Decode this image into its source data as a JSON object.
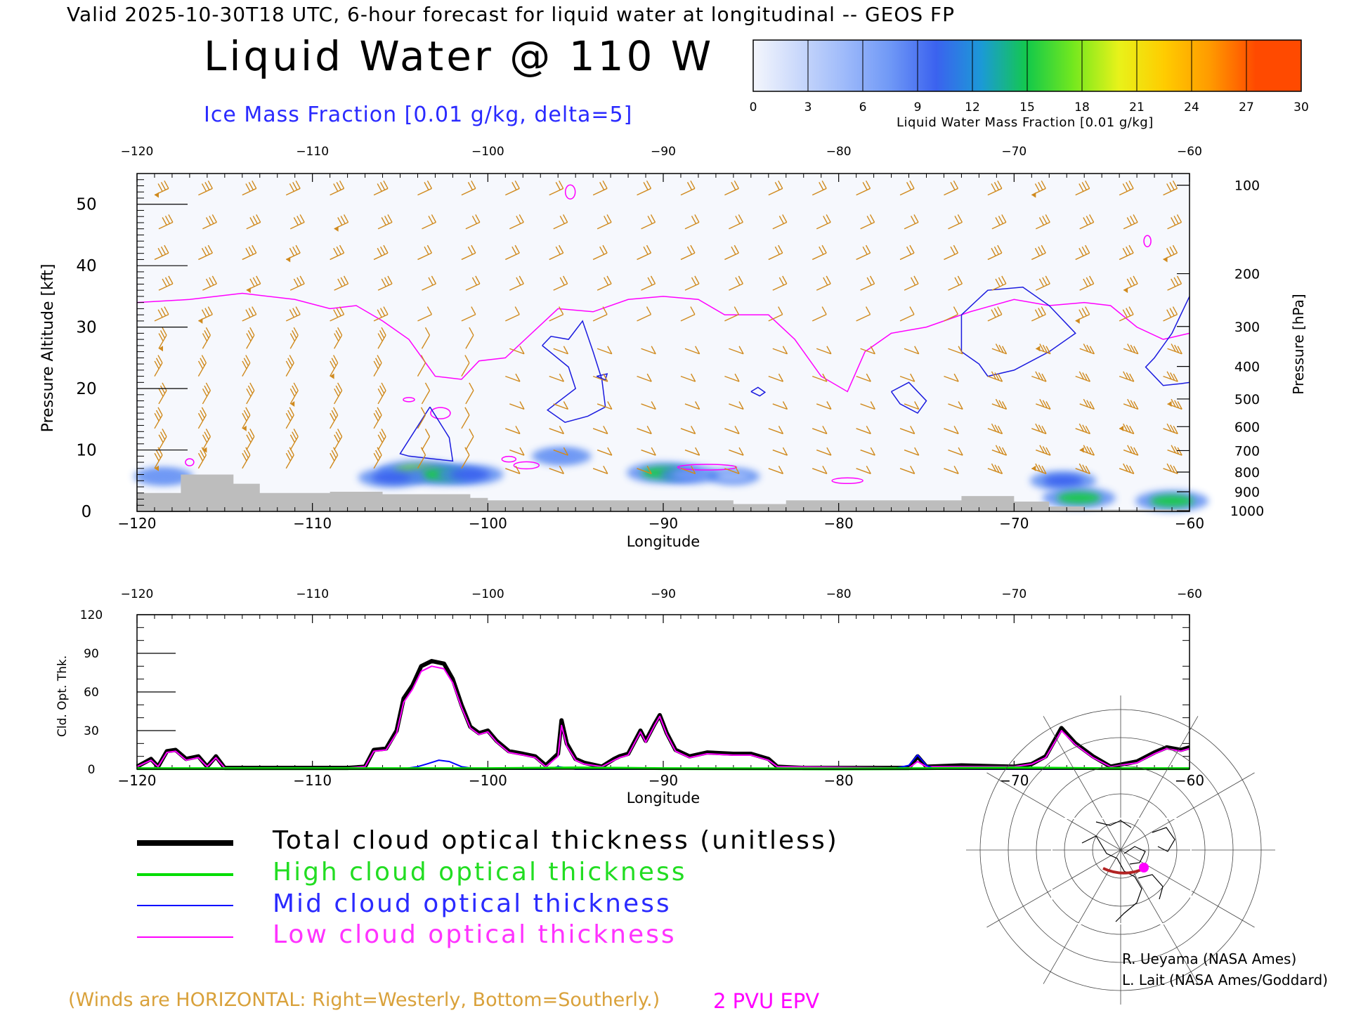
{
  "header": {
    "valid_line": "Valid 2025-10-30T18 UTC, 6-hour forecast for liquid water at longitudinal -- GEOS FP",
    "title": "Liquid Water @ 110 W",
    "subtitle": "Ice Mass Fraction [0.01 g/kg, delta=5]"
  },
  "colorbar": {
    "ticks": [
      "0",
      "3",
      "6",
      "9",
      "12",
      "15",
      "18",
      "21",
      "24",
      "27",
      "30"
    ],
    "label": "Liquid Water Mass Fraction [0.01 g/kg]",
    "colors": [
      "#f4f6fc",
      "#c9d8fb",
      "#9ebafa",
      "#6f98f6",
      "#3b62ef",
      "#1b9ad6",
      "#13c94a",
      "#73e81e",
      "#e8f21a",
      "#ffcc00",
      "#ff9a00",
      "#ff4a00"
    ]
  },
  "chart_data": [
    {
      "type": "heatmap",
      "name": "cross-section",
      "xlabel": "Longitude",
      "ylabel_left": "Pressure Altitude [kft]",
      "ylabel_right": "Pressure [hPa]",
      "xlim": [
        -120,
        -60
      ],
      "ylim": [
        0,
        55
      ],
      "x_ticks": [
        "-120",
        "-110",
        "-100",
        "-90",
        "-80",
        "-70",
        "-60"
      ],
      "y_ticks_left": [
        "0",
        "10",
        "20",
        "30",
        "40",
        "50"
      ],
      "y_ticks_right": [
        {
          "label": "100",
          "kft": 53.1
        },
        {
          "label": "200",
          "kft": 38.7
        },
        {
          "label": "300",
          "kft": 30.1
        },
        {
          "label": "400",
          "kft": 23.6
        },
        {
          "label": "500",
          "kft": 18.3
        },
        {
          "label": "600",
          "kft": 13.8
        },
        {
          "label": "700",
          "kft": 9.9
        },
        {
          "label": "800",
          "kft": 6.4
        },
        {
          "label": "900",
          "kft": 3.2
        },
        {
          "label": "1000",
          "kft": 0.1
        }
      ],
      "liquid_water_blobs": [
        {
          "lon": -104.0,
          "kft": 6.5,
          "value": 18
        },
        {
          "lon": -102.5,
          "kft": 6.0,
          "value": 15
        },
        {
          "lon": -105.5,
          "kft": 5.5,
          "value": 12
        },
        {
          "lon": -101.0,
          "kft": 6.0,
          "value": 12
        },
        {
          "lon": -95.8,
          "kft": 9.0,
          "value": 9
        },
        {
          "lon": -90.0,
          "kft": 6.3,
          "value": 15
        },
        {
          "lon": -88.5,
          "kft": 6.0,
          "value": 9
        },
        {
          "lon": -86.0,
          "kft": 5.7,
          "value": 6
        },
        {
          "lon": -118.5,
          "kft": 5.7,
          "value": 9
        },
        {
          "lon": -67.2,
          "kft": 5.0,
          "value": 12
        },
        {
          "lon": -66.3,
          "kft": 2.2,
          "value": 15
        },
        {
          "lon": -61.0,
          "kft": 1.7,
          "value": 15
        }
      ],
      "ice_fraction_contour_level": "5",
      "epv_2pvu_kft": [
        [
          -120,
          34.0
        ],
        [
          -117,
          34.5
        ],
        [
          -114,
          35.5
        ],
        [
          -111,
          34.5
        ],
        [
          -109,
          33.0
        ],
        [
          -107.5,
          33.5
        ],
        [
          -106,
          31.0
        ],
        [
          -104.5,
          28.0
        ],
        [
          -103,
          22.0
        ],
        [
          -101.5,
          21.5
        ],
        [
          -100.5,
          24.5
        ],
        [
          -99,
          25.0
        ],
        [
          -97.5,
          29.0
        ],
        [
          -96,
          33.0
        ],
        [
          -94,
          32.5
        ],
        [
          -92,
          34.5
        ],
        [
          -90,
          35.0
        ],
        [
          -88,
          34.5
        ],
        [
          -86.5,
          32.0
        ],
        [
          -84,
          32.0
        ],
        [
          -82.5,
          28.0
        ],
        [
          -81,
          22.0
        ],
        [
          -79.5,
          19.5
        ],
        [
          -78.5,
          26.0
        ],
        [
          -77,
          29.0
        ],
        [
          -75,
          30.0
        ],
        [
          -72.5,
          32.5
        ],
        [
          -70,
          34.5
        ],
        [
          -68,
          33.5
        ],
        [
          -66,
          34.0
        ],
        [
          -64.5,
          33.5
        ],
        [
          -63,
          30.0
        ],
        [
          -61.5,
          28.0
        ],
        [
          -60,
          29.0
        ]
      ],
      "terrain_kft": [
        [
          -120,
          0
        ],
        [
          -120,
          3
        ],
        [
          -117.5,
          3
        ],
        [
          -117.5,
          6
        ],
        [
          -114.5,
          6
        ],
        [
          -114.5,
          4.5
        ],
        [
          -113,
          4.5
        ],
        [
          -113,
          3
        ],
        [
          -109,
          3
        ],
        [
          -109,
          3.2
        ],
        [
          -106,
          3.2
        ],
        [
          -106,
          2.8
        ],
        [
          -101,
          2.8
        ],
        [
          -101,
          2.2
        ],
        [
          -100,
          2.2
        ],
        [
          -100,
          1.8
        ],
        [
          -86,
          1.8
        ],
        [
          -86,
          1.2
        ],
        [
          -83,
          1.2
        ],
        [
          -83,
          1.8
        ],
        [
          -73,
          1.8
        ],
        [
          -73,
          2.5
        ],
        [
          -70,
          2.5
        ],
        [
          -70,
          1.6
        ],
        [
          -68,
          1.6
        ],
        [
          -68,
          0.8
        ],
        [
          -66,
          0.8
        ],
        [
          -66,
          0.3
        ],
        [
          -60,
          0.3
        ],
        [
          -60,
          0
        ]
      ]
    },
    {
      "type": "line",
      "name": "cloud-optical-thickness",
      "xlabel": "Longitude",
      "ylabel": "Cld. Opt. Thk.",
      "xlim": [
        -120,
        -60
      ],
      "ylim": [
        0,
        120
      ],
      "x_ticks": [
        "-120",
        "-110",
        "-100",
        "-90",
        "-80",
        "-70",
        "-60"
      ],
      "y_ticks": [
        "0",
        "30",
        "60",
        "90",
        "120"
      ],
      "series": [
        {
          "name": "Total cloud optical thickness (unitless)",
          "color": "#000000",
          "width": 6,
          "points": [
            [
              -120,
              2
            ],
            [
              -119.2,
              8
            ],
            [
              -118.8,
              2
            ],
            [
              -118.3,
              14
            ],
            [
              -117.8,
              15
            ],
            [
              -117.2,
              8
            ],
            [
              -116.5,
              10
            ],
            [
              -116,
              2
            ],
            [
              -115.5,
              10
            ],
            [
              -115,
              1
            ],
            [
              -112,
              1
            ],
            [
              -108,
              1
            ],
            [
              -107,
              2
            ],
            [
              -106.5,
              15
            ],
            [
              -105.8,
              16
            ],
            [
              -105.2,
              30
            ],
            [
              -104.8,
              55
            ],
            [
              -104.3,
              65
            ],
            [
              -103.8,
              80
            ],
            [
              -103.2,
              84
            ],
            [
              -102.5,
              82
            ],
            [
              -102,
              70
            ],
            [
              -101.5,
              50
            ],
            [
              -101,
              33
            ],
            [
              -100.5,
              28
            ],
            [
              -100,
              30
            ],
            [
              -99.5,
              22
            ],
            [
              -98.8,
              14
            ],
            [
              -98,
              12
            ],
            [
              -97.3,
              10
            ],
            [
              -96.7,
              3
            ],
            [
              -96,
              12
            ],
            [
              -95.8,
              38
            ],
            [
              -95.5,
              20
            ],
            [
              -95,
              8
            ],
            [
              -94.5,
              5
            ],
            [
              -93.5,
              2
            ],
            [
              -92.8,
              8
            ],
            [
              -92.5,
              10
            ],
            [
              -92,
              12
            ],
            [
              -91.3,
              30
            ],
            [
              -91,
              22
            ],
            [
              -90.5,
              35
            ],
            [
              -90.2,
              42
            ],
            [
              -89.8,
              28
            ],
            [
              -89.3,
              15
            ],
            [
              -88.5,
              10
            ],
            [
              -87.5,
              13
            ],
            [
              -86,
              12
            ],
            [
              -85,
              12
            ],
            [
              -84,
              8
            ],
            [
              -83.5,
              2
            ],
            [
              -82,
              1
            ],
            [
              -76,
              1
            ],
            [
              -75.5,
              10
            ],
            [
              -75,
              2
            ],
            [
              -73,
              3
            ],
            [
              -70,
              2
            ],
            [
              -69,
              4
            ],
            [
              -68.2,
              10
            ],
            [
              -67.3,
              32
            ],
            [
              -66.5,
              20
            ],
            [
              -65.5,
              10
            ],
            [
              -64.5,
              2
            ],
            [
              -63,
              6
            ],
            [
              -62,
              13
            ],
            [
              -61.3,
              17
            ],
            [
              -60.5,
              15
            ],
            [
              -60,
              17
            ]
          ]
        },
        {
          "name": "High cloud optical thickness",
          "color": "#00dd00",
          "width": 4,
          "points": [
            [
              -120,
              0.5
            ],
            [
              -110,
              0.5
            ],
            [
              -100,
              0.5
            ],
            [
              -95,
              1
            ],
            [
              -90,
              0.5
            ],
            [
              -80,
              0.3
            ],
            [
              -75,
              0.5
            ],
            [
              -70,
              1
            ],
            [
              -65,
              0.5
            ],
            [
              -60,
              0.5
            ]
          ]
        },
        {
          "name": "Mid cloud optical thickness",
          "color": "#0000ff",
          "width": 2,
          "points": [
            [
              -120,
              0
            ],
            [
              -105,
              0
            ],
            [
              -104,
              2
            ],
            [
              -103.5,
              4
            ],
            [
              -102.8,
              7
            ],
            [
              -102.2,
              6
            ],
            [
              -101.5,
              2
            ],
            [
              -100.5,
              0
            ],
            [
              -96.5,
              0
            ],
            [
              -96,
              2
            ],
            [
              -95.5,
              1
            ],
            [
              -95,
              0
            ],
            [
              -77,
              0
            ],
            [
              -76,
              3
            ],
            [
              -75.5,
              11
            ],
            [
              -75,
              3
            ],
            [
              -74.5,
              0
            ],
            [
              -60,
              0
            ]
          ]
        },
        {
          "name": "Low cloud optical thickness",
          "color": "#ff00ff",
          "width": 2,
          "points": [
            [
              -120,
              2
            ],
            [
              -119.2,
              7
            ],
            [
              -118.8,
              2
            ],
            [
              -118.3,
              13
            ],
            [
              -117.8,
              14
            ],
            [
              -117.2,
              7
            ],
            [
              -116.5,
              9
            ],
            [
              -116,
              2
            ],
            [
              -115.5,
              9
            ],
            [
              -115,
              1
            ],
            [
              -108,
              1
            ],
            [
              -107,
              2
            ],
            [
              -106.5,
              14
            ],
            [
              -105.8,
              15
            ],
            [
              -105.2,
              28
            ],
            [
              -104.8,
              52
            ],
            [
              -104.3,
              62
            ],
            [
              -103.8,
              76
            ],
            [
              -103.2,
              80
            ],
            [
              -102.5,
              78
            ],
            [
              -102,
              67
            ],
            [
              -101.5,
              48
            ],
            [
              -101,
              32
            ],
            [
              -100.5,
              27
            ],
            [
              -100,
              29
            ],
            [
              -99.5,
              21
            ],
            [
              -98.8,
              13
            ],
            [
              -98,
              11
            ],
            [
              -97.3,
              9
            ],
            [
              -96.7,
              2
            ],
            [
              -96,
              10
            ],
            [
              -95.8,
              34
            ],
            [
              -95.5,
              18
            ],
            [
              -95,
              7
            ],
            [
              -94.5,
              4
            ],
            [
              -93.5,
              2
            ],
            [
              -92.8,
              7
            ],
            [
              -92.5,
              9
            ],
            [
              -92,
              11
            ],
            [
              -91.3,
              29
            ],
            [
              -91,
              21
            ],
            [
              -90.5,
              34
            ],
            [
              -90.2,
              41
            ],
            [
              -89.8,
              27
            ],
            [
              -89.3,
              14
            ],
            [
              -88.5,
              9
            ],
            [
              -87.5,
              12
            ],
            [
              -86,
              11
            ],
            [
              -85,
              11
            ],
            [
              -84,
              7
            ],
            [
              -83.5,
              2
            ],
            [
              -76,
              1
            ],
            [
              -75.5,
              6
            ],
            [
              -75,
              2
            ],
            [
              -70,
              2
            ],
            [
              -69,
              4
            ],
            [
              -68.2,
              9
            ],
            [
              -67.3,
              30
            ],
            [
              -66.5,
              19
            ],
            [
              -65.5,
              9
            ],
            [
              -64.5,
              2
            ],
            [
              -63,
              5
            ],
            [
              -62,
              12
            ],
            [
              -61.3,
              16
            ],
            [
              -60.5,
              14
            ],
            [
              -60,
              16
            ]
          ]
        }
      ]
    }
  ],
  "legend": {
    "total": "Total cloud optical thickness (unitless)",
    "high": "High cloud optical thickness",
    "mid": "Mid cloud optical thickness",
    "low": "Low cloud optical thickness"
  },
  "credits": {
    "line1": "R. Ueyama (NASA Ames)",
    "line2": "L. Lait (NASA Ames/Goddard)"
  },
  "notes": {
    "winds": "(Winds are HORIZONTAL: Right=Westerly, Bottom=Southerly.)",
    "pvu": "2 PVU EPV"
  },
  "colors": {
    "ice_contour": "#1a1adf",
    "epv": "#ff00ff",
    "wind_barb": "#d08a1e",
    "terrain": "#bdbdbd",
    "path_line": "#b22222",
    "path_dot": "#ff00ff"
  }
}
